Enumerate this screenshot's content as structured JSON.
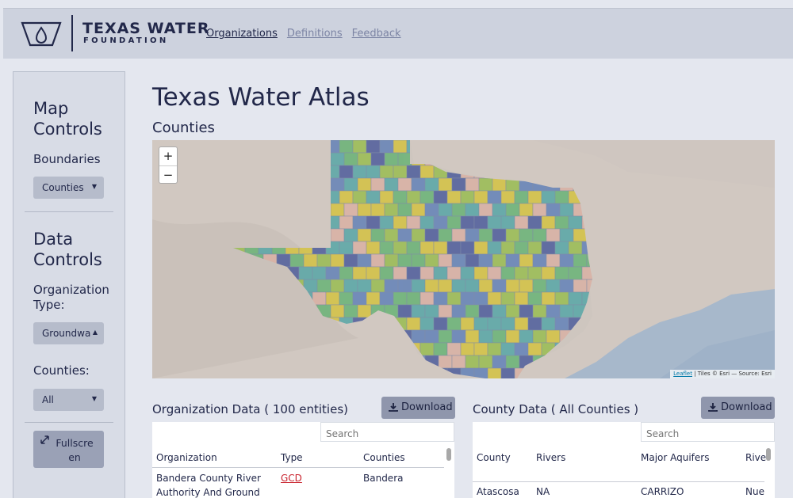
{
  "header": {
    "logo_title": "TEXAS WATER",
    "logo_sub": "FOUNDATION",
    "nav": [
      {
        "label": "Organizations",
        "active": true
      },
      {
        "label": "Definitions",
        "active": false
      },
      {
        "label": "Feedback",
        "active": false
      }
    ]
  },
  "sidebar": {
    "map_controls_title": "Map Controls",
    "boundaries_label": "Boundaries",
    "boundaries_value": "Counties",
    "data_controls_title": "Data Controls",
    "org_type_label": "Organization Type:",
    "org_type_value": "Groundwa",
    "counties_label": "Counties:",
    "counties_value": "All",
    "fullscreen_label": "Fullscreen"
  },
  "main": {
    "title": "Texas Water Atlas",
    "subtitle": "Counties",
    "map": {
      "zoom_in": "+",
      "zoom_out": "−",
      "attribution_link": "Leaflet",
      "attribution_text": " | Tiles © Esri — Source: Esri"
    },
    "org_panel": {
      "title": "Organization Data ( 100 entities)",
      "download": "Download",
      "search_placeholder": "Search",
      "columns": [
        "Organization",
        "Type",
        "Counties"
      ],
      "rows": [
        {
          "organization": "Bandera County River Authority And Ground",
          "type": "GCD",
          "counties": "Bandera"
        }
      ]
    },
    "county_panel": {
      "title": "County Data ( All Counties )",
      "download": "Download",
      "search_placeholder": "Search",
      "columns": [
        "County",
        "Rivers",
        "Major Aquifers",
        "Rive"
      ],
      "rows": [
        {
          "county": "Atascosa",
          "rivers": "NA",
          "aquifers": "CARRIZO",
          "rive": "Nue"
        }
      ]
    }
  },
  "colors": {
    "county_palette": [
      "#d4c24a",
      "#9dbd58",
      "#6fb47a",
      "#5fa8a8",
      "#6a86b8",
      "#56639e",
      "#d9b2a6"
    ]
  }
}
